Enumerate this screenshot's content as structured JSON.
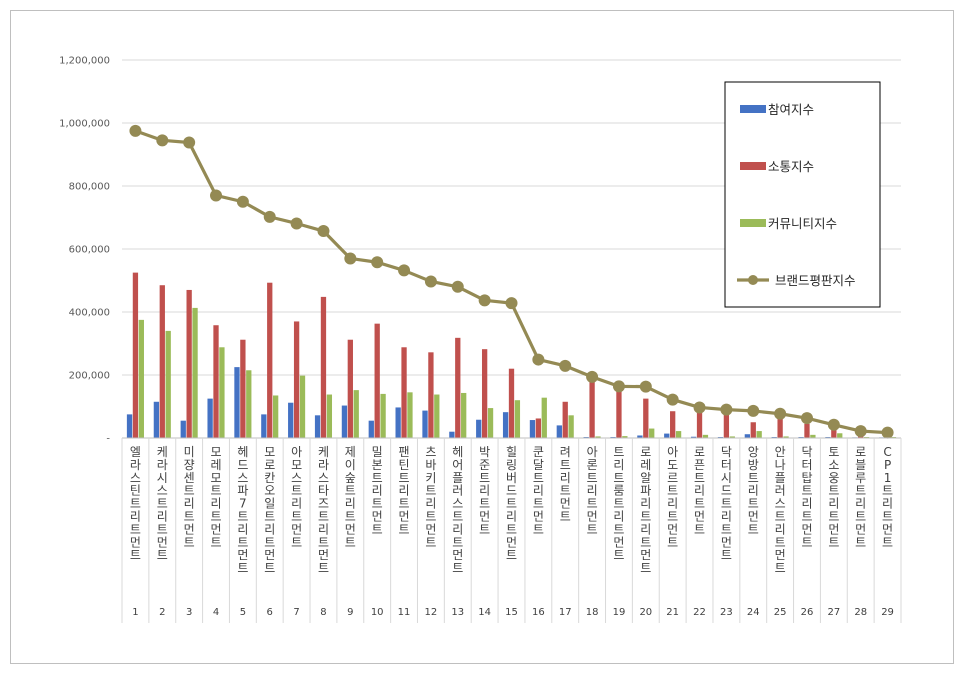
{
  "chart_data": {
    "type": "bar",
    "ylim": [
      0,
      1200000
    ],
    "yticks": [
      0,
      200000,
      400000,
      600000,
      800000,
      1000000,
      1200000
    ],
    "ytick_labels": [
      "-",
      "200,000",
      "400,000",
      "600,000",
      "800,000",
      "1,000,000",
      "1,200,000"
    ],
    "grid": true,
    "legend_position": "top-right",
    "numbers": [
      "1",
      "2",
      "3",
      "4",
      "5",
      "6",
      "7",
      "8",
      "9",
      "10",
      "11",
      "12",
      "13",
      "14",
      "15",
      "16",
      "17",
      "18",
      "19",
      "20",
      "21",
      "22",
      "23",
      "24",
      "25",
      "26",
      "27",
      "28",
      "29"
    ],
    "categories": [
      "엘라스틴트리트먼트",
      "케라시스트리트먼트",
      "미쟝센트리트먼트",
      "모레모트리트먼트",
      "헤드스파7트리트먼트",
      "모로칸오일트리트먼트",
      "아모스트리트먼트",
      "케라스타즈트리트먼트",
      "제이숲트리트먼트",
      "밀본트리트먼트",
      "팬틴트리트먼트",
      "츠바키트리트먼트",
      "헤어플러스트리트먼트",
      "박준트리트먼트",
      "힐링버드트리트먼트",
      "쿤달트리트먼트",
      "려트리트먼트",
      "아론트리트먼트",
      "트리트룸트리트먼트",
      "로레알파리트리트먼트",
      "아도르트리트먼트",
      "로픈트리트먼트",
      "닥터시드트리트먼트",
      "앙방트리트먼트",
      "안나플러스트리트먼트",
      "닥터탑트리트먼트",
      "토소웅트리트먼트",
      "로블루트리트먼트",
      "CP1트리트먼트"
    ],
    "series": [
      {
        "name": "참여지수",
        "kind": "bar",
        "color": "#4472c4",
        "values": [
          75000,
          115000,
          55000,
          125000,
          225000,
          75000,
          112000,
          72000,
          103000,
          55000,
          97000,
          87000,
          20000,
          58000,
          82000,
          57000,
          40000,
          3000,
          3000,
          8000,
          14000,
          4000,
          3000,
          12000,
          3000,
          3000,
          3000,
          2000,
          2000
        ]
      },
      {
        "name": "소통지수",
        "kind": "bar",
        "color": "#c0504d",
        "values": [
          525000,
          485000,
          470000,
          358000,
          312000,
          493000,
          370000,
          448000,
          312000,
          363000,
          288000,
          272000,
          318000,
          282000,
          220000,
          62000,
          115000,
          180000,
          155000,
          125000,
          85000,
          82000,
          80000,
          50000,
          70000,
          45000,
          35000,
          5000,
          3000
        ]
      },
      {
        "name": "커뮤니티지수",
        "kind": "bar",
        "color": "#9bbb59",
        "values": [
          375000,
          340000,
          413000,
          288000,
          215000,
          135000,
          198000,
          138000,
          152000,
          140000,
          145000,
          138000,
          143000,
          95000,
          120000,
          128000,
          72000,
          5000,
          6000,
          30000,
          22000,
          10000,
          5000,
          22000,
          5000,
          10000,
          15000,
          3000,
          3000
        ]
      },
      {
        "name": "브랜드평판지수",
        "kind": "line",
        "color": "#948a54",
        "values": [
          975000,
          945000,
          938000,
          770000,
          750000,
          702000,
          681000,
          657000,
          570000,
          558000,
          532000,
          497000,
          480000,
          437000,
          428000,
          249000,
          229000,
          194000,
          164000,
          163000,
          122000,
          97000,
          90000,
          86000,
          77000,
          63000,
          42000,
          22000,
          17000
        ]
      }
    ]
  }
}
